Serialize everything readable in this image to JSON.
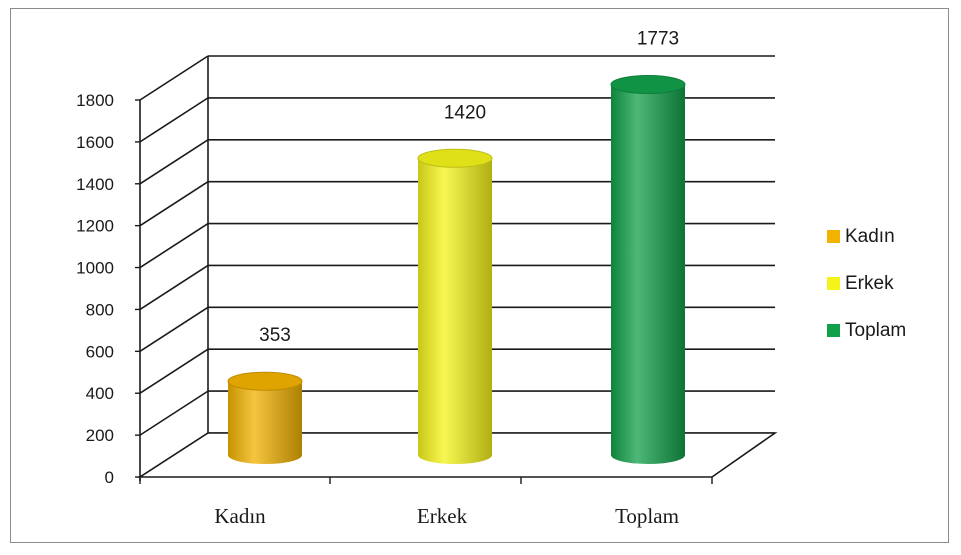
{
  "chart_data": {
    "type": "bar",
    "style": "3d-cylinder",
    "categories": [
      "Kadın",
      "Erkek",
      "Toplam"
    ],
    "values": [
      353,
      1420,
      1773
    ],
    "colors": [
      "#f2b200",
      "#f4f41a",
      "#11a04a"
    ],
    "title": "",
    "xlabel": "",
    "ylabel": "",
    "ylim": [
      0,
      1800
    ],
    "yticks": [
      "0",
      "200",
      "400",
      "600",
      "800",
      "1000",
      "1200",
      "1400",
      "1600",
      "1800"
    ],
    "grid": true,
    "data_labels": [
      "353",
      "1420",
      "1773"
    ],
    "legend": {
      "position": "right",
      "entries": [
        "Kadın",
        "Erkek",
        "Toplam"
      ]
    }
  }
}
